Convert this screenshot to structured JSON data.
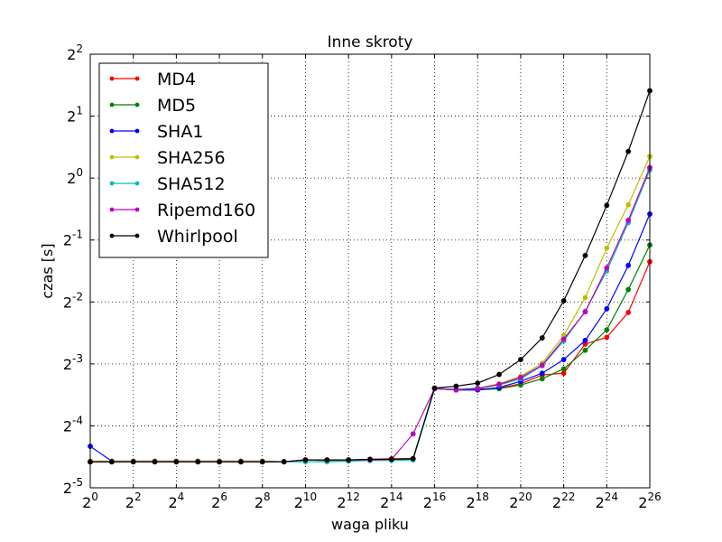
{
  "chart_data": {
    "type": "line",
    "title": "Inne skroty",
    "xlabel": "waga pliku",
    "ylabel": "czas [s]",
    "x_scale": "log2",
    "y_scale": "log2",
    "xlim": [
      0,
      26
    ],
    "ylim": [
      -5,
      2
    ],
    "grid": true,
    "legend_position": "upper-left",
    "x_tick_base": "2",
    "x_tick_exponents": [
      "0",
      "2",
      "4",
      "6",
      "8",
      "10",
      "12",
      "14",
      "16",
      "18",
      "20",
      "22",
      "24",
      "26"
    ],
    "y_tick_base": "2",
    "y_tick_exponents": [
      "-5",
      "-4",
      "-3",
      "-2",
      "-1",
      "0",
      "1",
      "2"
    ],
    "x_exponents": [
      0,
      1,
      2,
      3,
      4,
      5,
      6,
      7,
      8,
      9,
      10,
      11,
      12,
      13,
      14,
      15,
      16,
      17,
      18,
      19,
      20,
      21,
      22,
      23,
      24,
      25,
      26
    ],
    "series": [
      {
        "name": "MD4",
        "color": "#ff0000",
        "log2_time": [
          -4.58,
          -4.58,
          -4.58,
          -4.58,
          -4.58,
          -4.58,
          -4.58,
          -4.58,
          -4.58,
          -4.58,
          -4.55,
          -4.55,
          -4.55,
          -4.54,
          -4.53,
          -4.53,
          -3.4,
          -3.41,
          -3.41,
          -3.39,
          -3.32,
          -3.18,
          -3.15,
          -2.68,
          -2.57,
          -2.17,
          -1.35
        ]
      },
      {
        "name": "MD5",
        "color": "#008000",
        "log2_time": [
          -4.58,
          -4.58,
          -4.58,
          -4.58,
          -4.58,
          -4.58,
          -4.58,
          -4.58,
          -4.58,
          -4.58,
          -4.55,
          -4.56,
          -4.56,
          -4.55,
          -4.54,
          -4.53,
          -3.39,
          -3.42,
          -3.42,
          -3.4,
          -3.34,
          -3.24,
          -3.08,
          -2.78,
          -2.45,
          -1.8,
          -1.08
        ]
      },
      {
        "name": "SHA1",
        "color": "#0000ff",
        "log2_time": [
          -4.33,
          -4.57,
          -4.57,
          -4.57,
          -4.57,
          -4.57,
          -4.57,
          -4.57,
          -4.57,
          -4.58,
          -4.55,
          -4.56,
          -4.56,
          -4.55,
          -4.54,
          -4.54,
          -3.4,
          -3.42,
          -3.42,
          -3.38,
          -3.28,
          -3.15,
          -2.93,
          -2.62,
          -2.11,
          -1.41,
          -0.58
        ]
      },
      {
        "name": "SHA256",
        "color": "#bfbf00",
        "log2_time": [
          -4.57,
          -4.57,
          -4.57,
          -4.57,
          -4.57,
          -4.57,
          -4.57,
          -4.57,
          -4.57,
          -4.58,
          -4.55,
          -4.56,
          -4.56,
          -4.55,
          -4.54,
          -4.53,
          -3.4,
          -3.41,
          -3.39,
          -3.32,
          -3.2,
          -2.99,
          -2.54,
          -1.93,
          -1.13,
          -0.43,
          0.35
        ]
      },
      {
        "name": "SHA512",
        "color": "#00bfbf",
        "log2_time": [
          -4.58,
          -4.58,
          -4.58,
          -4.58,
          -4.58,
          -4.58,
          -4.58,
          -4.58,
          -4.58,
          -4.58,
          -4.58,
          -4.58,
          -4.57,
          -4.56,
          -4.56,
          -4.55,
          -3.4,
          -3.41,
          -3.39,
          -3.34,
          -3.24,
          -3.03,
          -2.63,
          -2.15,
          -1.5,
          -0.72,
          0.13
        ]
      },
      {
        "name": "Ripemd160",
        "color": "#bf00bf",
        "log2_time": [
          -4.58,
          -4.58,
          -4.58,
          -4.58,
          -4.58,
          -4.58,
          -4.58,
          -4.58,
          -4.58,
          -4.58,
          -4.55,
          -4.55,
          -4.55,
          -4.55,
          -4.54,
          -4.13,
          -3.4,
          -3.42,
          -3.4,
          -3.33,
          -3.22,
          -3.02,
          -2.6,
          -2.16,
          -1.45,
          -0.68,
          0.17
        ]
      },
      {
        "name": "Whirlpool",
        "color": "#000000",
        "log2_time": [
          -4.58,
          -4.58,
          -4.58,
          -4.58,
          -4.58,
          -4.58,
          -4.58,
          -4.58,
          -4.58,
          -4.58,
          -4.55,
          -4.55,
          -4.55,
          -4.54,
          -4.54,
          -4.53,
          -3.39,
          -3.36,
          -3.31,
          -3.17,
          -2.93,
          -2.58,
          -1.98,
          -1.25,
          -0.44,
          0.43,
          1.41
        ]
      }
    ]
  }
}
